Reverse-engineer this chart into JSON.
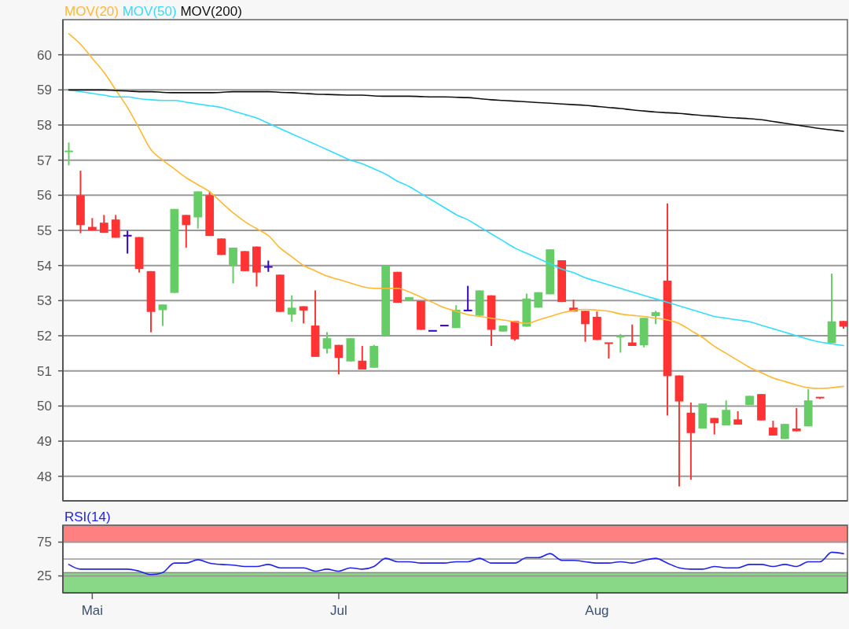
{
  "chart_data": [
    {
      "type": "candlestick",
      "categories": [
        null,
        null,
        null,
        null,
        null,
        null,
        null,
        null,
        null,
        null,
        null,
        null,
        null,
        null,
        null,
        null,
        null,
        null,
        null,
        null,
        null,
        null,
        null,
        null,
        null,
        null,
        null,
        null,
        null,
        null,
        null,
        null,
        null,
        null,
        null,
        null,
        null,
        null,
        null,
        null,
        null,
        null,
        null,
        null,
        null,
        null,
        null,
        null,
        null,
        null,
        null,
        null,
        null,
        null,
        null,
        null,
        null,
        null,
        null,
        null,
        null,
        null,
        null,
        null,
        null,
        null,
        null
      ],
      "ohlc": [
        [
          57.22,
          57.5,
          56.85,
          57.25
        ],
        [
          56.0,
          56.7,
          54.92,
          55.15
        ],
        [
          55.1,
          55.35,
          55.0,
          55.0
        ],
        [
          55.22,
          55.44,
          54.93,
          54.93
        ],
        [
          55.31,
          55.44,
          54.79,
          54.79
        ],
        [
          54.85,
          54.99,
          54.34,
          54.85
        ],
        [
          54.81,
          54.81,
          53.8,
          53.9
        ],
        [
          53.84,
          53.84,
          52.1,
          52.68
        ],
        [
          52.73,
          52.89,
          52.28,
          52.89
        ],
        [
          53.22,
          55.61,
          53.22,
          55.61
        ],
        [
          55.44,
          55.44,
          54.51,
          55.15
        ],
        [
          55.37,
          56.11,
          55.05,
          56.11
        ],
        [
          56.0,
          56.12,
          54.84,
          54.84
        ],
        [
          54.77,
          54.77,
          54.3,
          54.3
        ],
        [
          53.99,
          54.51,
          53.49,
          54.51
        ],
        [
          54.41,
          54.41,
          53.84,
          53.84
        ],
        [
          54.54,
          54.54,
          53.4,
          53.8
        ],
        [
          53.96,
          54.14,
          53.82,
          53.96
        ],
        [
          53.74,
          53.74,
          52.68,
          52.68
        ],
        [
          52.6,
          53.15,
          52.4,
          52.8
        ],
        [
          52.84,
          52.84,
          52.35,
          52.72
        ],
        [
          52.29,
          53.29,
          51.4,
          51.4
        ],
        [
          51.63,
          52.1,
          51.5,
          51.93
        ],
        [
          51.74,
          51.74,
          50.9,
          51.37
        ],
        [
          51.27,
          51.93,
          51.27,
          51.93
        ],
        [
          51.29,
          51.71,
          51.04,
          51.04
        ],
        [
          51.09,
          51.74,
          51.09,
          51.71
        ],
        [
          52.0,
          54.0,
          52.0,
          54.0
        ],
        [
          53.82,
          53.82,
          52.94,
          52.94
        ],
        [
          53.0,
          53.1,
          53.0,
          53.1
        ],
        [
          52.99,
          52.99,
          52.17,
          52.17
        ],
        [
          52.14,
          52.14,
          52.14,
          52.14
        ],
        [
          52.29,
          52.29,
          52.29,
          52.29
        ],
        [
          52.22,
          52.87,
          52.22,
          52.74
        ],
        [
          52.72,
          53.42,
          52.72,
          52.72
        ],
        [
          52.57,
          53.29,
          52.57,
          53.29
        ],
        [
          53.15,
          53.15,
          51.71,
          52.17
        ],
        [
          52.12,
          52.29,
          52.12,
          52.29
        ],
        [
          52.42,
          52.42,
          51.86,
          51.9
        ],
        [
          52.26,
          53.2,
          52.26,
          53.06
        ],
        [
          52.8,
          53.24,
          52.8,
          53.24
        ],
        [
          53.18,
          54.46,
          53.18,
          54.46
        ],
        [
          54.15,
          54.15,
          52.96,
          52.96
        ],
        [
          52.8,
          53.03,
          52.69,
          52.69
        ],
        [
          52.71,
          52.71,
          51.83,
          52.33
        ],
        [
          52.54,
          52.69,
          51.88,
          51.88
        ],
        [
          51.79,
          51.79,
          51.35,
          51.75
        ],
        [
          51.94,
          52.05,
          51.52,
          51.98
        ],
        [
          51.81,
          52.32,
          51.71,
          51.71
        ],
        [
          51.73,
          52.51,
          51.67,
          52.51
        ],
        [
          52.56,
          52.71,
          52.33,
          52.67
        ],
        [
          53.57,
          55.77,
          49.73,
          50.85
        ],
        [
          50.87,
          50.87,
          47.71,
          50.13
        ],
        [
          49.81,
          50.1,
          47.9,
          49.23
        ],
        [
          49.36,
          50.07,
          49.36,
          50.07
        ],
        [
          49.66,
          49.66,
          49.19,
          49.51
        ],
        [
          49.45,
          50.16,
          49.45,
          49.89
        ],
        [
          49.62,
          49.85,
          49.47,
          49.47
        ],
        [
          50.03,
          50.29,
          50.03,
          50.29
        ],
        [
          50.34,
          50.34,
          49.59,
          49.59
        ],
        [
          49.39,
          49.58,
          49.16,
          49.16
        ],
        [
          49.06,
          49.49,
          49.06,
          49.49
        ],
        [
          49.36,
          49.94,
          49.28,
          49.28
        ],
        [
          49.42,
          50.48,
          49.42,
          50.16
        ],
        [
          50.24,
          50.24,
          50.2,
          50.2
        ],
        [
          51.79,
          53.77,
          51.79,
          52.41
        ],
        [
          52.42,
          52.42,
          52.2,
          52.26
        ]
      ],
      "colors": [
        "#66cc66",
        "#ff3333",
        "#ff3333",
        "#ff3333",
        "#ff3333",
        "#3300cc",
        "#ff3333",
        "#ff3333",
        "#66cc66",
        "#66cc66",
        "#ff3333",
        "#66cc66",
        "#ff3333",
        "#ff3333",
        "#66cc66",
        "#ff3333",
        "#ff3333",
        "#3300cc",
        "#ff3333",
        "#66cc66",
        "#ff3333",
        "#ff3333",
        "#66cc66",
        "#ff3333",
        "#66cc66",
        "#ff3333",
        "#66cc66",
        "#66cc66",
        "#ff3333",
        "#66cc66",
        "#ff3333",
        "#3300cc",
        "#3300cc",
        "#66cc66",
        "#3300cc",
        "#66cc66",
        "#ff3333",
        "#66cc66",
        "#ff3333",
        "#66cc66",
        "#66cc66",
        "#66cc66",
        "#ff3333",
        "#ff3333",
        "#ff3333",
        "#ff3333",
        "#ff3333",
        "#66cc66",
        "#ff3333",
        "#66cc66",
        "#66cc66",
        "#ff3333",
        "#ff3333",
        "#ff3333",
        "#66cc66",
        "#ff3333",
        "#66cc66",
        "#ff3333",
        "#66cc66",
        "#ff3333",
        "#ff3333",
        "#66cc66",
        "#ff3333",
        "#66cc66",
        "#ff3333",
        "#66cc66",
        "#ff3333"
      ],
      "series": [
        {
          "type": "line",
          "name": "MOV(20)",
          "color": "#ffb833",
          "values": [
            60.6,
            60.3,
            59.9,
            59.5,
            59.0,
            58.5,
            57.9,
            57.3,
            57.0,
            56.75,
            56.5,
            56.3,
            56.1,
            55.8,
            55.5,
            55.25,
            55.05,
            54.85,
            54.5,
            54.25,
            54.0,
            53.85,
            53.7,
            53.6,
            53.5,
            53.4,
            53.35,
            53.35,
            53.35,
            53.25,
            53.1,
            52.95,
            52.8,
            52.7,
            52.6,
            52.55,
            52.5,
            52.45,
            52.4,
            52.35,
            52.45,
            52.55,
            52.65,
            52.72,
            52.75,
            52.73,
            52.7,
            52.62,
            52.58,
            52.55,
            52.5,
            52.45,
            52.35,
            52.15,
            51.95,
            51.7,
            51.5,
            51.3,
            51.1,
            50.95,
            50.8,
            50.7,
            50.6,
            50.52,
            50.5,
            50.52,
            50.56
          ]
        },
        {
          "type": "line",
          "name": "MOV(50)",
          "color": "#33ddff",
          "values": [
            59.0,
            58.95,
            58.9,
            58.85,
            58.8,
            58.8,
            58.75,
            58.72,
            58.7,
            58.7,
            58.65,
            58.6,
            58.55,
            58.5,
            58.4,
            58.3,
            58.2,
            58.05,
            57.9,
            57.75,
            57.6,
            57.45,
            57.3,
            57.15,
            57.0,
            56.9,
            56.75,
            56.6,
            56.4,
            56.25,
            56.05,
            55.85,
            55.65,
            55.45,
            55.3,
            55.1,
            54.9,
            54.7,
            54.5,
            54.35,
            54.2,
            54.05,
            53.9,
            53.8,
            53.65,
            53.55,
            53.45,
            53.35,
            53.25,
            53.15,
            53.05,
            52.95,
            52.85,
            52.75,
            52.65,
            52.55,
            52.5,
            52.45,
            52.4,
            52.3,
            52.2,
            52.1,
            52.0,
            51.9,
            51.82,
            51.77,
            51.72
          ]
        },
        {
          "type": "line",
          "name": "MOV(200)",
          "color": "#111111",
          "values": [
            59.0,
            59.0,
            59.0,
            59.0,
            58.98,
            58.97,
            58.95,
            58.95,
            58.93,
            58.92,
            58.92,
            58.92,
            58.92,
            58.93,
            58.95,
            58.95,
            58.95,
            58.95,
            58.93,
            58.92,
            58.9,
            58.88,
            58.87,
            58.86,
            58.85,
            58.85,
            58.83,
            58.82,
            58.82,
            58.82,
            58.81,
            58.8,
            58.8,
            58.79,
            58.78,
            58.75,
            58.72,
            58.7,
            58.68,
            58.66,
            58.64,
            58.62,
            58.6,
            58.58,
            58.56,
            58.53,
            58.5,
            58.47,
            58.43,
            58.4,
            58.37,
            58.35,
            58.33,
            58.3,
            58.27,
            58.25,
            58.22,
            58.2,
            58.18,
            58.15,
            58.1,
            58.05,
            58.0,
            57.95,
            57.9,
            57.86,
            57.82
          ]
        }
      ],
      "ylim": [
        47.3,
        61.0
      ],
      "yticks": [
        48,
        49,
        50,
        51,
        52,
        53,
        54,
        55,
        56,
        57,
        58,
        59,
        60
      ],
      "grid": "y",
      "legend": "top left",
      "tick_labels": "y"
    },
    {
      "type": "line",
      "categories": [
        null,
        null,
        "Mai",
        null,
        null,
        null,
        null,
        null,
        null,
        null,
        null,
        null,
        null,
        null,
        null,
        null,
        null,
        null,
        null,
        null,
        null,
        null,
        null,
        "Jul",
        null,
        null,
        null,
        null,
        null,
        null,
        null,
        null,
        null,
        null,
        null,
        null,
        null,
        null,
        null,
        null,
        null,
        null,
        null,
        null,
        null,
        "Aug",
        null,
        null,
        null,
        null,
        null,
        null,
        null,
        null,
        null,
        null,
        null,
        null,
        null,
        null,
        null,
        null,
        null,
        null,
        null,
        null,
        null
      ],
      "series": [
        {
          "name": "RSI(14)",
          "color": "#2222ee",
          "values": [
            42,
            35,
            35,
            35,
            35,
            35,
            32,
            27,
            30,
            44,
            44,
            49,
            44,
            42,
            41,
            39,
            39,
            42,
            37,
            37,
            37,
            32,
            35,
            32,
            37,
            35,
            39,
            51,
            46,
            46,
            44,
            44,
            44,
            46,
            46,
            51,
            44,
            44,
            44,
            52,
            52,
            58,
            48,
            48,
            46,
            44,
            44,
            46,
            44,
            48,
            51,
            44,
            37,
            35,
            35,
            39,
            37,
            37,
            42,
            42,
            39,
            42,
            39,
            46,
            46,
            60,
            58
          ]
        }
      ],
      "ylim": [
        0,
        100
      ],
      "yticks": [
        25,
        75
      ],
      "grid": "y",
      "legend": "top left",
      "bands": [
        {
          "axis": "y",
          "from": 75,
          "to": 100,
          "color": "#ff8080"
        },
        {
          "axis": "y",
          "from": 0,
          "to": 30,
          "color": "#88d888"
        }
      ],
      "ref_lines": [
        {
          "axis": "y",
          "value": 50,
          "color": "#999999"
        }
      ]
    }
  ]
}
